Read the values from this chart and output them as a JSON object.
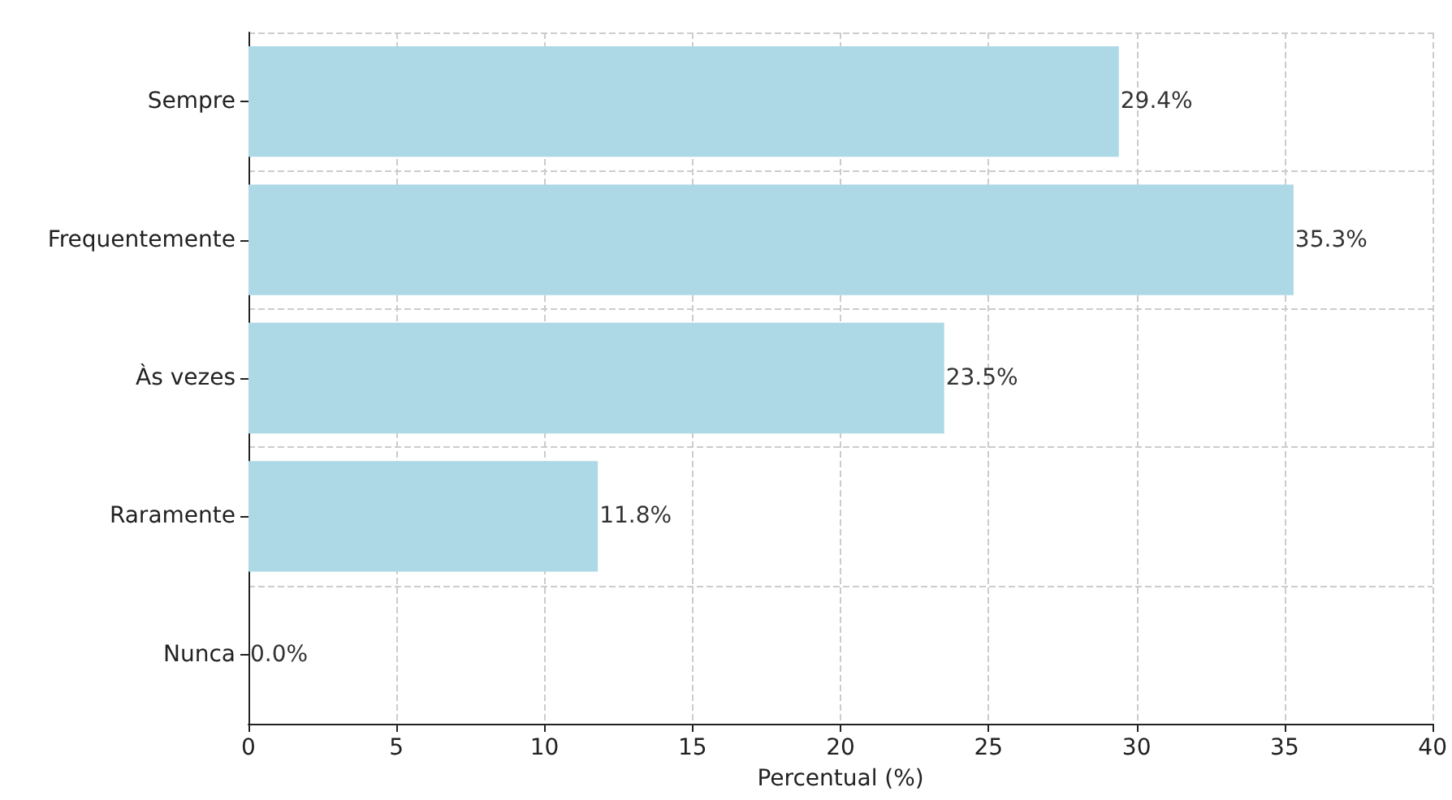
{
  "chart_data": {
    "type": "bar",
    "orientation": "horizontal",
    "xlabel": "Percentual (%)",
    "categories": [
      "Sempre",
      "Frequentemente",
      "Às vezes",
      "Raramente",
      "Nunca"
    ],
    "values": [
      29.4,
      35.3,
      23.5,
      11.8,
      0.0
    ],
    "value_labels": [
      "29.4%",
      "35.3%",
      "23.5%",
      "11.8%",
      "0.0%"
    ],
    "color": "#add8e6",
    "xlim": [
      0,
      40
    ],
    "xticks": [
      0,
      5,
      10,
      15,
      20,
      25,
      30,
      35,
      40
    ],
    "grid": true
  }
}
